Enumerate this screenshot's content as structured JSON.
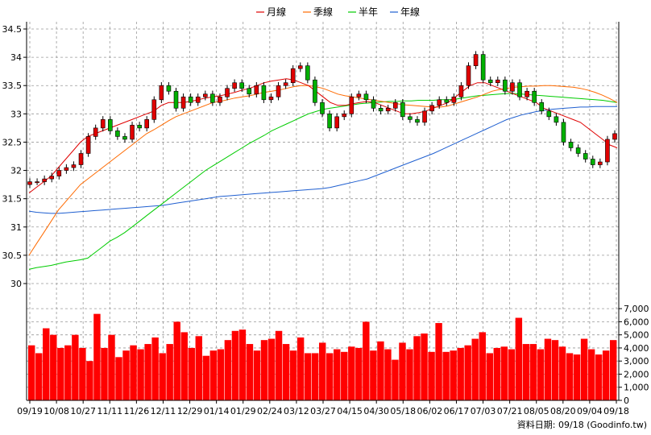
{
  "chart_data": {
    "type": "candlestick",
    "legend": [
      {
        "name": "月線",
        "color": "#e00000"
      },
      {
        "name": "季線",
        "color": "#ff6a00"
      },
      {
        "name": "半年",
        "color": "#00cc00"
      },
      {
        "name": "年線",
        "color": "#1f5fd0"
      }
    ],
    "price_axis": {
      "ticks": [
        "34.5",
        "34",
        "33.5",
        "33",
        "32.5",
        "32",
        "31.5",
        "31",
        "30.5",
        "30"
      ],
      "ylim": [
        29.8,
        34.6
      ]
    },
    "volume_axis": {
      "ticks": [
        "7,000",
        "6,000",
        "5,000",
        "4,000",
        "3,000",
        "2,000",
        "1,000",
        "0"
      ],
      "ylim": [
        0,
        7500
      ]
    },
    "x_ticks": [
      "09/19",
      "10/08",
      "10/27",
      "11/11",
      "11/26",
      "12/11",
      "12/29",
      "01/14",
      "01/29",
      "02/24",
      "03/12",
      "03/27",
      "04/15",
      "04/30",
      "05/18",
      "06/02",
      "06/17",
      "07/03",
      "07/21",
      "08/05",
      "08/20",
      "09/04",
      "09/18"
    ],
    "price_close": [
      31.8,
      31.8,
      31.85,
      31.9,
      32.0,
      32.05,
      32.1,
      32.3,
      32.6,
      32.75,
      32.9,
      32.7,
      32.6,
      32.55,
      32.8,
      32.75,
      32.9,
      33.25,
      33.5,
      33.4,
      33.1,
      33.3,
      33.2,
      33.3,
      33.35,
      33.2,
      33.3,
      33.45,
      33.55,
      33.45,
      33.35,
      33.5,
      33.25,
      33.3,
      33.5,
      33.55,
      33.8,
      33.85,
      33.6,
      33.2,
      33.0,
      32.75,
      32.95,
      33.0,
      33.3,
      33.35,
      33.25,
      33.1,
      33.05,
      33.1,
      33.2,
      32.95,
      32.9,
      32.85,
      33.05,
      33.15,
      33.25,
      33.2,
      33.3,
      33.5,
      33.85,
      34.05,
      33.6,
      33.55,
      33.6,
      33.4,
      33.55,
      33.3,
      33.4,
      33.2,
      33.05,
      32.95,
      32.85,
      32.5,
      32.4,
      32.3,
      32.2,
      32.1,
      32.15,
      32.55,
      32.65
    ],
    "volume": [
      4200,
      3600,
      5500,
      5000,
      4000,
      4200,
      5000,
      4000,
      3000,
      6600,
      4000,
      5000,
      3300,
      3800,
      4200,
      3900,
      4300,
      4800,
      3600,
      4300,
      6000,
      5200,
      4000,
      4900,
      3400,
      3800,
      3900,
      4600,
      5300,
      5400,
      4300,
      3800,
      4600,
      4700,
      5300,
      4300,
      3800,
      4800,
      3600,
      3600,
      4400,
      3600,
      3900,
      3700,
      4100,
      4000,
      6000,
      3800,
      4500,
      3900,
      3100,
      4400,
      3900,
      4900,
      5100,
      3700,
      5900,
      3700,
      3800,
      4000,
      4200,
      4700,
      5200,
      3600,
      4000,
      4100,
      3900,
      6300,
      4300,
      4300,
      3900,
      4700,
      4600,
      4100,
      3600,
      3500,
      4700,
      3900,
      3500,
      3800,
      4600
    ],
    "ma_month": [
      31.6,
      31.7,
      31.8,
      31.9,
      32.05,
      32.2,
      32.35,
      32.5,
      32.6,
      32.65,
      32.7,
      32.75,
      32.8,
      32.85,
      32.9,
      32.95,
      33.0,
      33.05,
      33.15,
      33.2,
      33.2,
      33.2,
      33.22,
      33.25,
      33.28,
      33.3,
      33.32,
      33.35,
      33.38,
      33.42,
      33.45,
      33.5,
      33.55,
      33.58,
      33.6,
      33.62,
      33.6,
      33.55,
      33.5,
      33.4,
      33.3,
      33.2,
      33.15,
      33.15,
      33.18,
      33.2,
      33.22,
      33.2,
      33.15,
      33.1,
      33.05,
      33.0,
      33.0,
      33.02,
      33.05,
      33.1,
      33.15,
      33.2,
      33.3,
      33.4,
      33.5,
      33.55,
      33.55,
      33.5,
      33.45,
      33.4,
      33.35,
      33.3,
      33.25,
      33.2,
      33.1,
      33.05,
      33.0,
      32.95,
      32.9,
      32.85,
      32.75,
      32.65,
      32.55,
      32.45,
      32.4
    ],
    "ma_quarter": [
      30.5,
      30.7,
      30.9,
      31.1,
      31.3,
      31.45,
      31.6,
      31.75,
      31.85,
      31.95,
      32.05,
      32.15,
      32.25,
      32.35,
      32.45,
      32.55,
      32.65,
      32.72,
      32.8,
      32.88,
      32.95,
      33.0,
      33.05,
      33.1,
      33.15,
      33.2,
      33.22,
      33.25,
      33.28,
      33.3,
      33.32,
      33.35,
      33.38,
      33.4,
      33.42,
      33.45,
      33.48,
      33.5,
      33.5,
      33.48,
      33.45,
      33.4,
      33.35,
      33.32,
      33.3,
      33.28,
      33.26,
      33.24,
      33.22,
      33.2,
      33.18,
      33.16,
      33.15,
      33.14,
      33.13,
      33.12,
      33.12,
      33.14,
      33.18,
      33.22,
      33.26,
      33.3,
      33.35,
      33.4,
      33.43,
      33.45,
      33.47,
      33.48,
      33.49,
      33.49,
      33.5,
      33.5,
      33.49,
      33.48,
      33.47,
      33.45,
      33.42,
      33.38,
      33.33,
      33.27,
      33.2
    ],
    "ma_half": [
      30.25,
      30.28,
      30.3,
      30.32,
      30.35,
      30.38,
      30.4,
      30.42,
      30.45,
      30.55,
      30.65,
      30.75,
      30.82,
      30.9,
      31.0,
      31.1,
      31.2,
      31.3,
      31.4,
      31.5,
      31.6,
      31.7,
      31.8,
      31.9,
      32.0,
      32.08,
      32.16,
      32.24,
      32.32,
      32.4,
      32.48,
      32.55,
      32.62,
      32.7,
      32.76,
      32.82,
      32.88,
      32.94,
      33.0,
      33.04,
      33.08,
      33.1,
      33.12,
      33.14,
      33.16,
      33.18,
      33.19,
      33.2,
      33.21,
      33.22,
      33.22,
      33.23,
      33.23,
      33.24,
      33.24,
      33.24,
      33.25,
      33.25,
      33.26,
      33.28,
      33.3,
      33.32,
      33.33,
      33.34,
      33.35,
      33.36,
      33.36,
      33.35,
      33.34,
      33.33,
      33.32,
      33.31,
      33.3,
      33.29,
      33.28,
      33.27,
      33.26,
      33.25,
      33.24,
      33.22,
      33.2
    ],
    "ma_year": [
      31.28,
      31.26,
      31.25,
      31.24,
      31.24,
      31.25,
      31.26,
      31.27,
      31.28,
      31.29,
      31.3,
      31.31,
      31.32,
      31.33,
      31.34,
      31.35,
      31.36,
      31.37,
      31.38,
      31.4,
      31.42,
      31.44,
      31.46,
      31.48,
      31.5,
      31.52,
      31.54,
      31.55,
      31.56,
      31.57,
      31.58,
      31.59,
      31.6,
      31.61,
      31.62,
      31.63,
      31.64,
      31.65,
      31.66,
      31.67,
      31.68,
      31.7,
      31.73,
      31.76,
      31.79,
      31.82,
      31.85,
      31.9,
      31.95,
      32.0,
      32.05,
      32.1,
      32.15,
      32.2,
      32.25,
      32.3,
      32.36,
      32.42,
      32.48,
      32.54,
      32.6,
      32.66,
      32.72,
      32.78,
      32.84,
      32.9,
      32.94,
      32.98,
      33.01,
      33.04,
      33.06,
      33.08,
      33.09,
      33.1,
      33.11,
      33.12,
      33.12,
      33.13,
      33.13,
      33.13,
      33.13
    ]
  },
  "footer": {
    "source": "資料日期: 09/18 (Goodinfo.tw)"
  }
}
